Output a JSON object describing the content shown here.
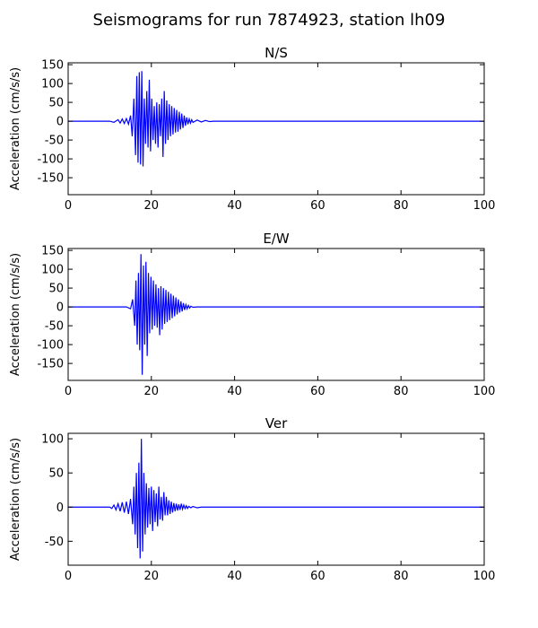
{
  "figure": {
    "title": "Seismograms for run 7874923, station lh09"
  },
  "chart_data": [
    {
      "type": "line",
      "title": "N/S",
      "xlabel": "",
      "ylabel": "Acceleration (cm/s/s)",
      "xlim": [
        0,
        100
      ],
      "ylim": [
        -195,
        155
      ],
      "xticks": [
        0,
        20,
        40,
        60,
        80,
        100
      ],
      "yticks": [
        150,
        100,
        50,
        0,
        -50,
        -100,
        -150
      ],
      "color": "#0000ff",
      "grid": false,
      "series": [
        {
          "x": [
            0,
            10,
            11,
            12,
            12.5,
            13,
            13.5,
            14,
            14.5,
            15,
            15.4,
            15.8,
            16.2,
            16.5,
            16.8,
            17.1,
            17.4,
            17.7,
            18.0,
            18.3,
            18.6,
            18.9,
            19.2,
            19.5,
            19.8,
            20.1,
            20.4,
            20.7,
            21.0,
            21.3,
            21.6,
            21.9,
            22.2,
            22.5,
            22.8,
            23.1,
            23.4,
            23.7,
            24.0,
            24.3,
            24.6,
            24.9,
            25.2,
            25.5,
            25.8,
            26.1,
            26.4,
            26.7,
            27.0,
            27.3,
            27.6,
            27.9,
            28.2,
            28.5,
            28.8,
            29.1,
            29.4,
            29.7,
            30,
            31,
            32,
            33,
            34,
            35,
            100
          ],
          "y": [
            0,
            0,
            -3,
            4,
            -5,
            6,
            -6,
            7,
            -8,
            15,
            -40,
            60,
            -90,
            120,
            -110,
            130,
            -115,
            133,
            -120,
            60,
            -60,
            80,
            -70,
            110,
            -80,
            60,
            -50,
            40,
            -60,
            50,
            -70,
            45,
            -40,
            60,
            -95,
            80,
            -60,
            55,
            -50,
            45,
            -40,
            40,
            -35,
            35,
            -30,
            30,
            -28,
            25,
            -22,
            20,
            -18,
            15,
            -12,
            10,
            -8,
            6,
            -5,
            4,
            -3,
            3,
            -2,
            2,
            -1,
            0,
            0
          ]
        }
      ]
    },
    {
      "type": "line",
      "title": "E/W",
      "xlabel": "",
      "ylabel": "Acceleration (cm/s/s)",
      "xlim": [
        0,
        100
      ],
      "ylim": [
        -195,
        155
      ],
      "xticks": [
        0,
        20,
        40,
        60,
        80,
        100
      ],
      "yticks": [
        150,
        100,
        50,
        0,
        -50,
        -100,
        -150
      ],
      "color": "#0000ff",
      "grid": false,
      "series": [
        {
          "x": [
            0,
            14,
            15,
            15.5,
            16,
            16.3,
            16.6,
            16.9,
            17.2,
            17.5,
            17.8,
            18.1,
            18.4,
            18.7,
            19.0,
            19.3,
            19.6,
            19.9,
            20.2,
            20.5,
            20.8,
            21.1,
            21.4,
            21.7,
            22.0,
            22.3,
            22.6,
            22.9,
            23.2,
            23.5,
            23.8,
            24.1,
            24.4,
            24.7,
            25.0,
            25.3,
            25.6,
            25.9,
            26.2,
            26.5,
            26.8,
            27.1,
            27.4,
            27.7,
            28.0,
            28.3,
            28.6,
            28.9,
            29.2,
            29.5,
            30,
            31,
            100
          ],
          "y": [
            0,
            0,
            -5,
            20,
            -50,
            70,
            -100,
            90,
            -115,
            140,
            -180,
            110,
            -100,
            120,
            -130,
            90,
            -70,
            80,
            -60,
            70,
            -50,
            60,
            -55,
            50,
            -75,
            55,
            -60,
            50,
            -45,
            45,
            -40,
            40,
            -35,
            35,
            -30,
            30,
            -25,
            25,
            -20,
            20,
            -15,
            15,
            -12,
            10,
            -8,
            6,
            -5,
            4,
            -3,
            2,
            -1,
            0,
            0
          ]
        }
      ]
    },
    {
      "type": "line",
      "title": "Ver",
      "xlabel": "",
      "ylabel": "Acceleration (cm/s/s)",
      "xlim": [
        0,
        100
      ],
      "ylim": [
        -85,
        108
      ],
      "xticks": [
        0,
        20,
        40,
        60,
        80,
        100
      ],
      "yticks": [
        100,
        50,
        0,
        -50
      ],
      "color": "#0000ff",
      "grid": false,
      "series": [
        {
          "x": [
            0,
            10,
            10.5,
            11,
            11.5,
            12,
            12.5,
            13,
            13.5,
            14,
            14.5,
            15,
            15.5,
            15.8,
            16.1,
            16.4,
            16.7,
            17.0,
            17.3,
            17.6,
            17.9,
            18.2,
            18.5,
            18.8,
            19.1,
            19.4,
            19.7,
            20.0,
            20.3,
            20.6,
            20.9,
            21.2,
            21.5,
            21.8,
            22.1,
            22.4,
            22.7,
            23.0,
            23.3,
            23.6,
            23.9,
            24.2,
            24.5,
            24.8,
            25.1,
            25.4,
            25.7,
            26.0,
            26.3,
            26.6,
            26.9,
            27.2,
            27.5,
            27.8,
            28.1,
            28.4,
            28.7,
            29.0,
            29.5,
            30,
            31,
            32,
            33,
            34,
            100
          ],
          "y": [
            0,
            0,
            -2,
            3,
            -4,
            5,
            -6,
            7,
            -8,
            8,
            -10,
            12,
            -25,
            30,
            -40,
            50,
            -60,
            65,
            -75,
            100,
            -65,
            50,
            -40,
            35,
            -30,
            28,
            -25,
            30,
            -35,
            25,
            -22,
            20,
            -28,
            30,
            -18,
            15,
            -20,
            22,
            -12,
            15,
            -12,
            10,
            -10,
            8,
            -8,
            6,
            -6,
            5,
            -5,
            4,
            -4,
            5,
            -3,
            3,
            -2,
            2,
            -2,
            1,
            -1,
            1,
            -1,
            0,
            0,
            0,
            0
          ]
        }
      ]
    }
  ]
}
